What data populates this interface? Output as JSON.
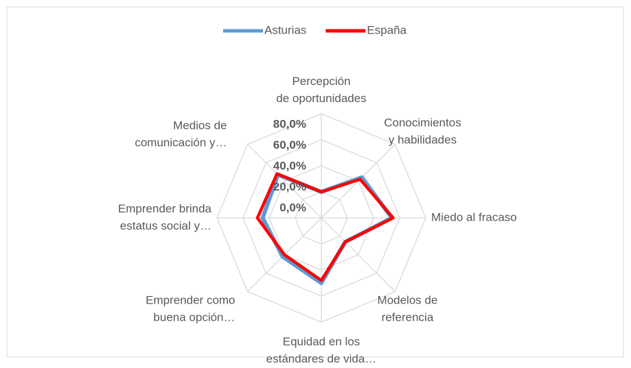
{
  "chart_data": {
    "type": "radar",
    "categories": [
      "Percepción de oportunidades",
      "Conocimientos y habilidades",
      "Miedo al fracaso",
      "Modelos de referencia",
      "Equidad en los estándares de vida…",
      "Emprender como buena opción…",
      "Emprender brinda estatus social y…",
      "Medios de comunicación y…"
    ],
    "series": [
      {
        "name": "Asturias",
        "color": "#5b9bd5",
        "values": [
          20,
          44,
          54,
          26,
          50,
          42,
          45,
          47
        ]
      },
      {
        "name": "España",
        "color": "#ff0000",
        "values": [
          20,
          42,
          55,
          26,
          48,
          40,
          49,
          48
        ]
      }
    ],
    "ylim": [
      0,
      80
    ],
    "yticks": [
      {
        "value": 0,
        "label": "0,0%"
      },
      {
        "value": 20,
        "label": "20,0%"
      },
      {
        "value": 40,
        "label": "40,0%"
      },
      {
        "value": 60,
        "label": "60,0%"
      },
      {
        "value": 80,
        "label": "80,0%"
      }
    ],
    "grid": true,
    "legend": "top"
  }
}
